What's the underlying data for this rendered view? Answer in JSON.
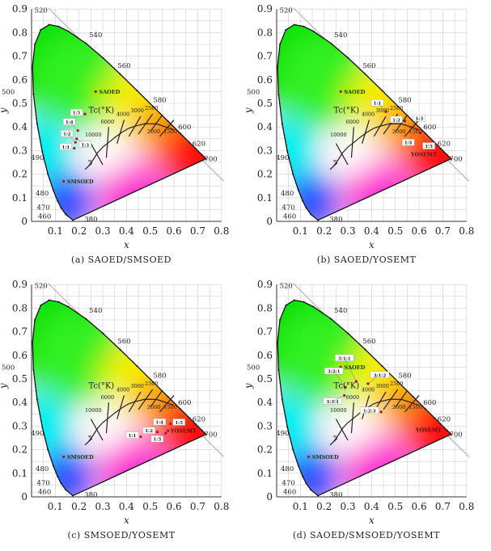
{
  "chart_data": [
    {
      "type": "scatter",
      "title": "(a) SAOED/SMSOED",
      "xlabel": "x",
      "ylabel": "y",
      "xlim": [
        0,
        0.8
      ],
      "ylim": [
        0,
        0.9
      ],
      "xticks": [
        "0.1",
        "0.2",
        "0.3",
        "0.4",
        "0.5",
        "0.6",
        "0.7",
        "0.8"
      ],
      "yticks": [
        "0",
        "0.1",
        "0.2",
        "0.3",
        "0.4",
        "0.5",
        "0.6",
        "0.7",
        "0.8",
        "0.9"
      ],
      "grid": true,
      "cct_title": "Tc(°K)",
      "points": [
        {
          "label": "SAOED",
          "x": 0.27,
          "y": 0.55,
          "style": "plain"
        },
        {
          "label": "SMSOED",
          "x": 0.135,
          "y": 0.17,
          "style": "plain"
        },
        {
          "label": "1:1",
          "x": 0.18,
          "y": 0.31,
          "style": "box"
        },
        {
          "label": "1:2",
          "x": 0.185,
          "y": 0.335,
          "style": "box"
        },
        {
          "label": "1:3",
          "x": 0.19,
          "y": 0.35,
          "style": "box"
        },
        {
          "label": "1:4",
          "x": 0.195,
          "y": 0.385,
          "style": "box"
        },
        {
          "label": "1:5",
          "x": 0.225,
          "y": 0.455,
          "style": "box"
        }
      ]
    },
    {
      "type": "scatter",
      "title": "(b) SAOED/YOSEMT",
      "xlabel": "x",
      "ylabel": "y",
      "xlim": [
        0,
        0.8
      ],
      "ylim": [
        0,
        0.9
      ],
      "xticks": [
        "0.1",
        "0.2",
        "0.3",
        "0.4",
        "0.5",
        "0.6",
        "0.7",
        "0.8"
      ],
      "yticks": [
        "0",
        "0.1",
        "0.2",
        "0.3",
        "0.4",
        "0.5",
        "0.6",
        "0.7",
        "0.8",
        "0.9"
      ],
      "grid": true,
      "cct_title": "Tc(°K)",
      "points": [
        {
          "label": "SAOED",
          "x": 0.27,
          "y": 0.55,
          "style": "plain"
        },
        {
          "label": "YOSEMT",
          "x": 0.62,
          "y": 0.285,
          "style": "labelonly"
        },
        {
          "label": "1:1",
          "x": 0.46,
          "y": 0.465,
          "style": "box"
        },
        {
          "label": "1:2",
          "x": 0.54,
          "y": 0.425,
          "style": "box"
        },
        {
          "label": "1:3",
          "x": 0.565,
          "y": 0.4,
          "style": "box"
        },
        {
          "label": "1:4",
          "x": 0.59,
          "y": 0.39,
          "style": "box"
        },
        {
          "label": "1:5",
          "x": 0.605,
          "y": 0.375,
          "style": "box"
        }
      ]
    },
    {
      "type": "scatter",
      "title": "(c) SMSOED/YOSEMT",
      "xlabel": "x",
      "ylabel": "y",
      "xlim": [
        0,
        0.8
      ],
      "ylim": [
        0,
        0.9
      ],
      "xticks": [
        "0.1",
        "0.2",
        "0.3",
        "0.4",
        "0.5",
        "0.6",
        "0.7",
        "0.8"
      ],
      "yticks": [
        "0",
        "0.1",
        "0.2",
        "0.3",
        "0.4",
        "0.5",
        "0.6",
        "0.7",
        "0.8",
        "0.9"
      ],
      "grid": true,
      "cct_title": "Tc(°K)",
      "points": [
        {
          "label": "SMSOED",
          "x": 0.135,
          "y": 0.17,
          "style": "plain"
        },
        {
          "label": "YOSEMT",
          "x": 0.64,
          "y": 0.28,
          "style": "labelonly"
        },
        {
          "label": "1:1",
          "x": 0.46,
          "y": 0.255,
          "style": "box"
        },
        {
          "label": "1:2",
          "x": 0.53,
          "y": 0.275,
          "style": "box"
        },
        {
          "label": "1:3",
          "x": 0.565,
          "y": 0.27,
          "style": "box"
        },
        {
          "label": "1:4",
          "x": 0.575,
          "y": 0.28,
          "style": "box"
        },
        {
          "label": "1:5",
          "x": 0.585,
          "y": 0.31,
          "style": "box"
        }
      ]
    },
    {
      "type": "scatter",
      "title": "(d) SAOED/SMSOED/YOSEMT",
      "xlabel": "x",
      "ylabel": "y",
      "xlim": [
        0,
        0.8
      ],
      "ylim": [
        0,
        0.9
      ],
      "xticks": [
        "0.1",
        "0.2",
        "0.3",
        "0.4",
        "0.5",
        "0.6",
        "0.7",
        "0.8"
      ],
      "yticks": [
        "0",
        "0.1",
        "0.2",
        "0.3",
        "0.4",
        "0.5",
        "0.6",
        "0.7",
        "0.8",
        "0.9"
      ],
      "grid": true,
      "cct_title": "Tc(°K)",
      "points": [
        {
          "label": "SAOED",
          "x": 0.27,
          "y": 0.55,
          "style": "plain"
        },
        {
          "label": "SMSOED",
          "x": 0.135,
          "y": 0.17,
          "style": "plain"
        },
        {
          "label": "YOSEMT",
          "x": 0.64,
          "y": 0.285,
          "style": "labelonly"
        },
        {
          "label": "3:1:1",
          "x": 0.335,
          "y": 0.49,
          "style": "box"
        },
        {
          "label": "3:1:2",
          "x": 0.385,
          "y": 0.48,
          "style": "box"
        },
        {
          "label": "3:2:1",
          "x": 0.29,
          "y": 0.465,
          "style": "box"
        },
        {
          "label": "3:3:1",
          "x": 0.285,
          "y": 0.43,
          "style": "box"
        },
        {
          "label": "1:2:3",
          "x": 0.44,
          "y": 0.36,
          "style": "box"
        }
      ]
    }
  ],
  "wavelengths": [
    "380",
    "460",
    "470",
    "480",
    "490",
    "500",
    "520",
    "540",
    "560",
    "580",
    "600",
    "620",
    "700"
  ],
  "cct_labels": [
    "1500",
    "2000",
    "2500",
    "3000",
    "4000",
    "6000",
    "10000",
    "∞"
  ],
  "colors": {
    "axis": "#222222",
    "grid": "#cfcfcf",
    "point": "#b0102a"
  }
}
